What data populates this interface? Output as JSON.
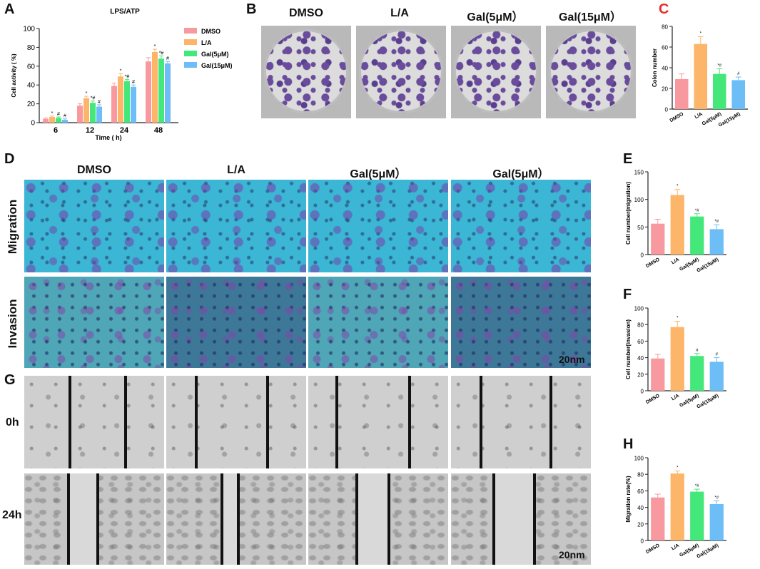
{
  "panels": {
    "A": "A",
    "B": "B",
    "C": "C",
    "D": "D",
    "E": "E",
    "F": "F",
    "G": "G",
    "H": "H"
  },
  "colony_columns": [
    "DMSO",
    "L/A",
    "Gal(5μM）",
    "Gal(15μM）"
  ],
  "transwell_columns": [
    "DMSO",
    "L/A",
    "Gal(5μM）",
    "Gal(5μM）"
  ],
  "transwell_rows": [
    "Migration",
    "Invasion"
  ],
  "wound_rows": [
    "0h",
    "24h"
  ],
  "scale_bar_d": "20nm",
  "scale_bar_g": "20nm",
  "colors": {
    "DMSO": "#f7999e",
    "L/A": "#fdb56a",
    "Gal5": "#44e77a",
    "Gal15": "#6dbdf7",
    "C_letter": "#e0302a"
  },
  "chart_data": [
    {
      "id": "A",
      "type": "bar",
      "title": "LPS/ATP",
      "xlabel": "Time ( h)",
      "ylabel": "Cell activity ( %)",
      "ylim": [
        0,
        100
      ],
      "yticks": [
        0,
        20,
        40,
        60,
        80,
        100
      ],
      "categories": [
        "6",
        "12",
        "24",
        "48"
      ],
      "series": [
        {
          "name": "DMSO",
          "values": [
            4,
            18,
            39,
            65
          ],
          "err": [
            1,
            2,
            3,
            4
          ],
          "marks": [
            "",
            "",
            "",
            ""
          ]
        },
        {
          "name": "L/A",
          "values": [
            6,
            26,
            49,
            75
          ],
          "err": [
            1,
            2,
            3,
            3
          ],
          "marks": [
            "*",
            "*",
            "*",
            "*"
          ]
        },
        {
          "name": "Gal(5μM)",
          "values": [
            5,
            21,
            44,
            68
          ],
          "err": [
            1,
            2,
            2,
            3
          ],
          "marks": [
            "#",
            "*#",
            "*#",
            "*#"
          ]
        },
        {
          "name": "Gal(15μM)",
          "values": [
            3,
            17,
            38,
            63
          ],
          "err": [
            1,
            2,
            2,
            2
          ],
          "marks": [
            "#",
            "#",
            "#",
            "#"
          ]
        }
      ],
      "legend": "right"
    },
    {
      "id": "C",
      "type": "bar",
      "ylabel": "Colon number",
      "ylim": [
        0,
        80
      ],
      "yticks": [
        0,
        20,
        40,
        60,
        80
      ],
      "categories": [
        "DMSO",
        "L/A",
        "Gal(5μM)",
        "Gal(15μM)"
      ],
      "values": [
        29,
        63,
        34,
        28
      ],
      "err": [
        5,
        7,
        5,
        3
      ],
      "marks": [
        "",
        "*",
        "*#",
        "#"
      ]
    },
    {
      "id": "E",
      "type": "bar",
      "ylabel": "Cell number(migration)",
      "ylim": [
        0,
        150
      ],
      "yticks": [
        0,
        50,
        100,
        150
      ],
      "categories": [
        "DMSO",
        "L/A",
        "Gal(5μM)",
        "Gal(15μM)"
      ],
      "values": [
        56,
        108,
        69,
        46
      ],
      "err": [
        8,
        10,
        5,
        8
      ],
      "marks": [
        "",
        "*",
        "*#",
        "*#"
      ]
    },
    {
      "id": "F",
      "type": "bar",
      "ylabel": "Cell number(invasion)",
      "ylim": [
        0,
        100
      ],
      "yticks": [
        0,
        20,
        40,
        60,
        80,
        100
      ],
      "categories": [
        "DMSO",
        "L/A",
        "Gal(5μM)",
        "Gal(15μM)"
      ],
      "values": [
        39,
        77,
        42,
        35
      ],
      "err": [
        5,
        7,
        3,
        5
      ],
      "marks": [
        "",
        "*",
        "#",
        "#"
      ]
    },
    {
      "id": "H",
      "type": "bar",
      "ylabel": "Migration rate(%)",
      "ylim": [
        0,
        100
      ],
      "yticks": [
        0,
        20,
        40,
        60,
        80,
        100
      ],
      "categories": [
        "DMSO",
        "L/A",
        "Gal(5μM)",
        "Gal(15μM)"
      ],
      "values": [
        52,
        81,
        59,
        44
      ],
      "err": [
        4,
        3,
        3,
        4
      ],
      "marks": [
        "",
        "*",
        "*#",
        "*#"
      ]
    }
  ]
}
